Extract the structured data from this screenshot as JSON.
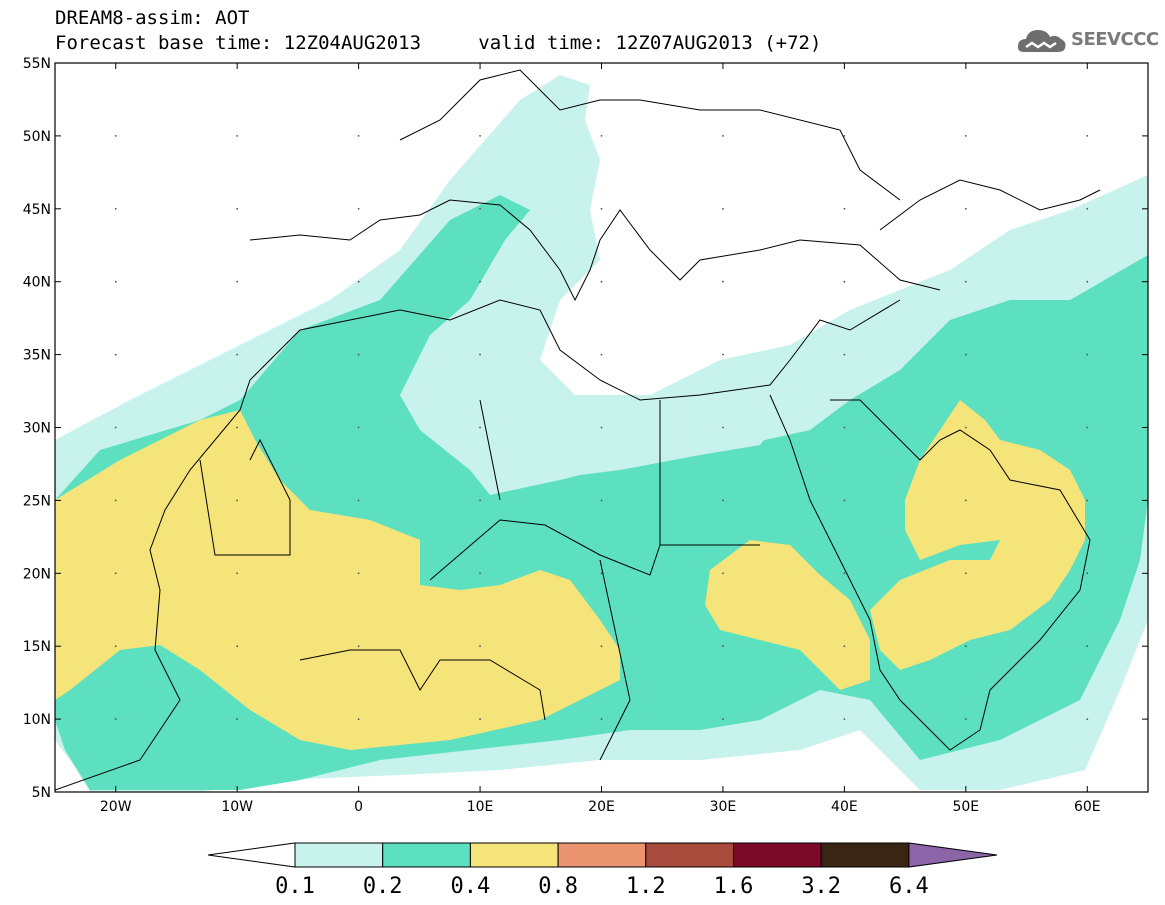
{
  "header": {
    "title": "DREAM8-assim: AOT",
    "forecast_line": "Forecast base time: 12Z04AUG2013",
    "valid_line": "valid time: 12Z07AUG2013 (+72)"
  },
  "logo": {
    "text": "SEEVCCC",
    "icon": "cloud-icon"
  },
  "map": {
    "lon_range": [
      -25,
      65
    ],
    "lat_range": [
      5,
      55
    ],
    "lat_labels": [
      "55N",
      "50N",
      "45N",
      "40N",
      "35N",
      "30N",
      "25N",
      "20N",
      "15N",
      "10N",
      "5N"
    ],
    "lon_labels": [
      "20W",
      "10W",
      "0",
      "10E",
      "20E",
      "30E",
      "40E",
      "50E",
      "60E"
    ],
    "field": "AOT"
  },
  "colorbar": {
    "labels": [
      "0.1",
      "0.2",
      "0.4",
      "0.8",
      "1.2",
      "1.6",
      "3.2",
      "6.4"
    ],
    "colors": [
      "#ffffff",
      "#c8f2ec",
      "#5ce0c0",
      "#f5e47a",
      "#eb9570",
      "#a84a3c",
      "#7a0a28",
      "#3a2414",
      "#8c64a8"
    ]
  }
}
